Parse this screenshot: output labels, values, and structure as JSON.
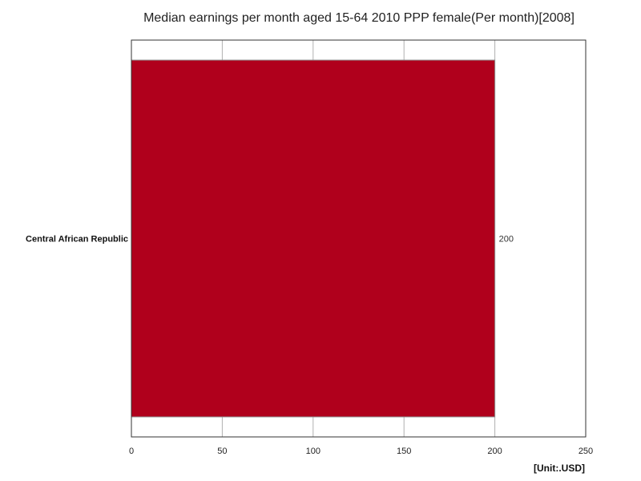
{
  "chart_data": {
    "type": "bar",
    "orientation": "horizontal",
    "title": "Median earnings per month aged 15-64 2010 PPP female(Per month)[2008]",
    "categories": [
      "Central African Republic"
    ],
    "values": [
      200
    ],
    "data_labels": [
      "200"
    ],
    "xlim": [
      0,
      250
    ],
    "xticks": [
      0,
      50,
      100,
      150,
      200,
      250
    ],
    "unit_label": "[Unit:.USD]",
    "grid": true,
    "colors": {
      "bar": "#b0001c",
      "bar_edge": "#8a8a8a",
      "grid": "#b0b0b0",
      "axis": "#333333"
    }
  }
}
